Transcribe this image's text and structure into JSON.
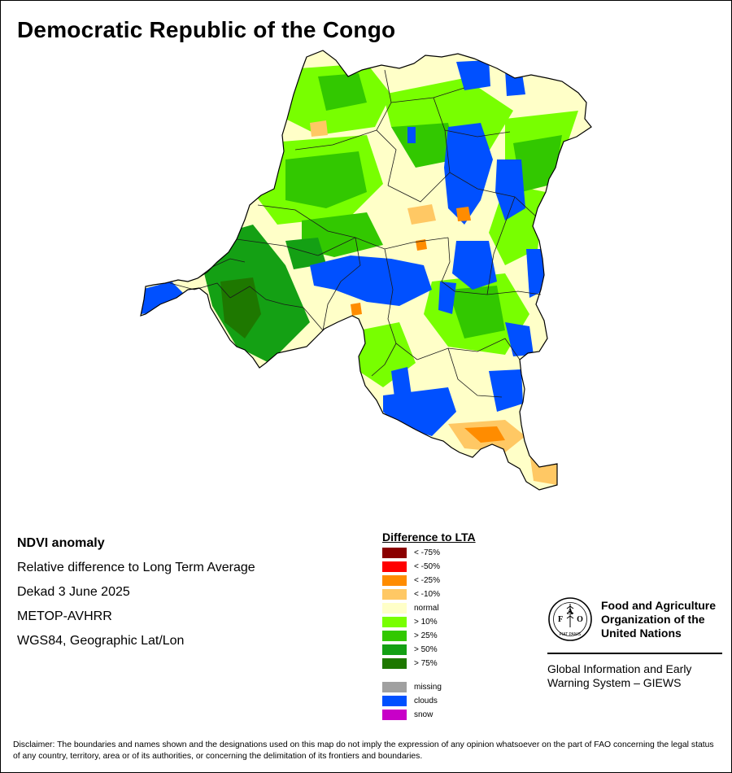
{
  "map": {
    "title": "Democratic Republic of the Congo",
    "info_lines": [
      "NDVI anomaly",
      "Relative difference to Long Term Average",
      "Dekad 3 June 2025",
      "METOP-AVHRR",
      "WGS84, Geographic Lat/Lon"
    ]
  },
  "legend": {
    "title": "Difference to LTA",
    "items": [
      {
        "label": "< -75%",
        "color": "#8b0000"
      },
      {
        "label": "< -50%",
        "color": "#ff0000"
      },
      {
        "label": "< -25%",
        "color": "#ff8c00"
      },
      {
        "label": "< -10%",
        "color": "#ffc864"
      },
      {
        "label": "normal",
        "color": "#ffffc8"
      },
      {
        "label": "> 10%",
        "color": "#78ff00"
      },
      {
        "label": "> 25%",
        "color": "#32c800"
      },
      {
        "label": "> 50%",
        "color": "#14a014"
      },
      {
        "label": "> 75%",
        "color": "#1e7800"
      }
    ],
    "extra_items": [
      {
        "label": "missing",
        "color": "#a0a0a0"
      },
      {
        "label": "clouds",
        "color": "#0050ff"
      },
      {
        "label": "snow",
        "color": "#c800c8"
      }
    ]
  },
  "organization": {
    "name_lines": [
      "Food and Agriculture",
      "Organization of the",
      "United Nations"
    ],
    "logo_letters": [
      "F",
      "A",
      "O"
    ],
    "logo_motto": "FIAT PANIS",
    "system_lines": [
      "Global Information and Early",
      "Warning System – GIEWS"
    ]
  },
  "disclaimer": "Disclaimer: The boundaries and names shown and the designations used on this map do not imply the expression of any opinion whatsoever on the part of FAO concerning the legal status of any country, territory, area or of its authorities, or concerning the delimitation of its frontiers and boundaries."
}
